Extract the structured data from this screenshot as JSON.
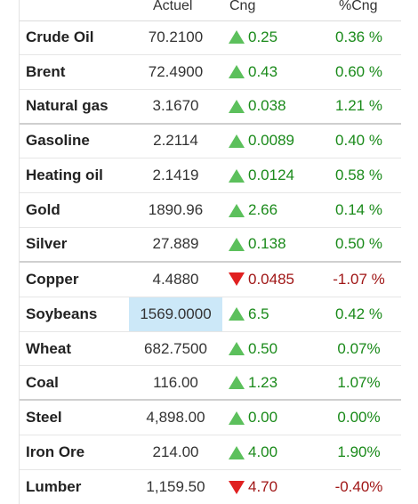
{
  "header": {
    "price_label": "Actuel",
    "change_label": "Cng",
    "pct_label": "%Cng"
  },
  "colors": {
    "up_text": "#1a8a1a",
    "down_text": "#a01616",
    "up_arrow": "#5cc05c",
    "down_arrow": "#e02020",
    "highlight": "#cce8f8"
  },
  "rows": [
    {
      "name": "Crude Oil",
      "price": "70.2100",
      "change": "0.25",
      "pct": "0.36 %",
      "dir": "up"
    },
    {
      "name": "Brent",
      "price": "72.4900",
      "change": "0.43",
      "pct": "0.60 %",
      "dir": "up"
    },
    {
      "name": "Natural gas",
      "price": "3.1670",
      "change": "0.038",
      "pct": "1.21 %",
      "dir": "up"
    },
    {
      "name": "Gasoline",
      "price": "2.2114",
      "change": "0.0089",
      "pct": "0.40 %",
      "dir": "up"
    },
    {
      "name": "Heating oil",
      "price": "2.1419",
      "change": "0.0124",
      "pct": "0.58 %",
      "dir": "up"
    },
    {
      "name": "Gold",
      "price": "1890.96",
      "change": "2.66",
      "pct": "0.14 %",
      "dir": "up"
    },
    {
      "name": "Silver",
      "price": "27.889",
      "change": "0.138",
      "pct": "0.50 %",
      "dir": "up"
    },
    {
      "name": "Copper",
      "price": "4.4880",
      "change": "0.0485",
      "pct": "-1.07 %",
      "dir": "down"
    },
    {
      "name": "Soybeans",
      "price": "1569.0000",
      "change": "6.5",
      "pct": "0.42 %",
      "dir": "up"
    },
    {
      "name": "Wheat",
      "price": "682.7500",
      "change": "0.50",
      "pct": "0.07%",
      "dir": "up"
    },
    {
      "name": "Coal",
      "price": "116.00",
      "change": "1.23",
      "pct": "1.07%",
      "dir": "up"
    },
    {
      "name": "Steel",
      "price": "4,898.00",
      "change": "0.00",
      "pct": "0.00%",
      "dir": "up"
    },
    {
      "name": "Iron Ore",
      "price": "214.00",
      "change": "4.00",
      "pct": "1.90%",
      "dir": "up"
    },
    {
      "name": "Lumber",
      "price": "1,159.50",
      "change": "4.70",
      "pct": "-0.40%",
      "dir": "down"
    }
  ]
}
